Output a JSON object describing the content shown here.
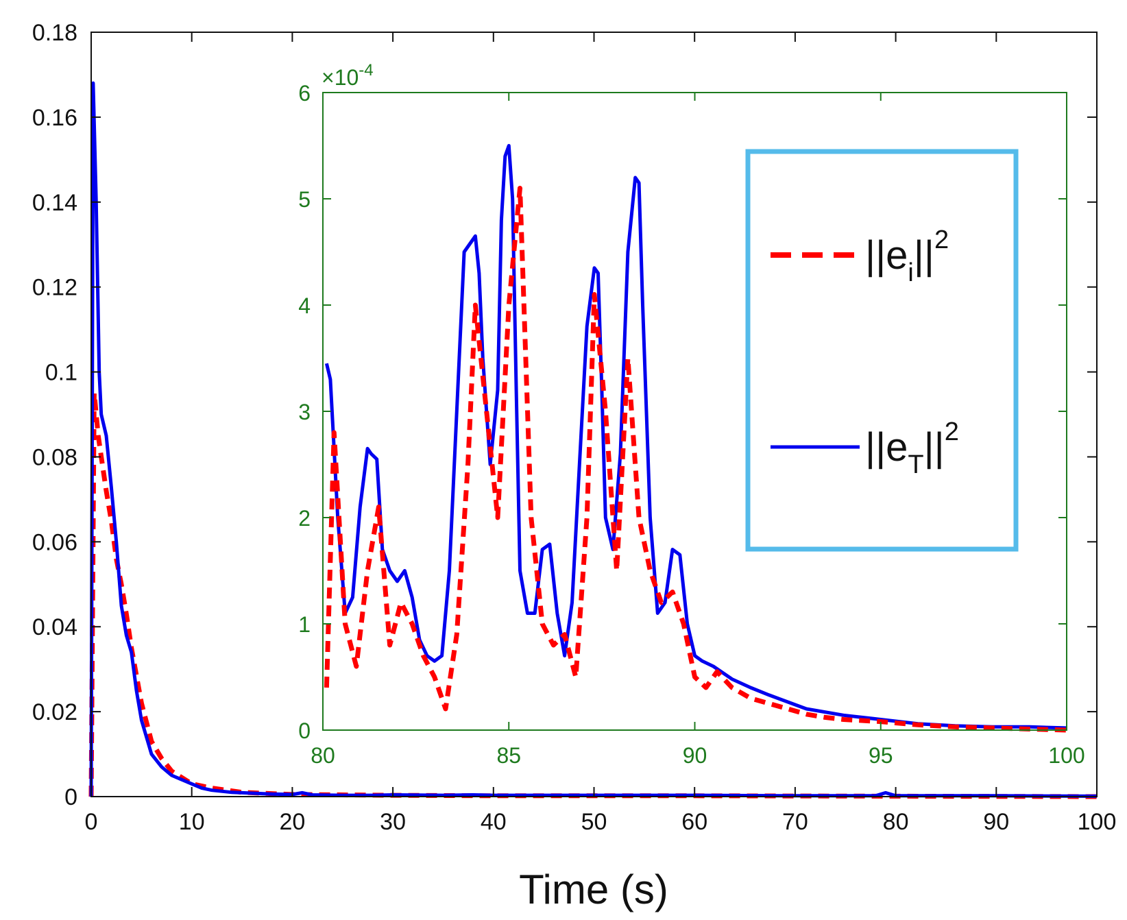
{
  "chart_data": [
    {
      "type": "line",
      "role": "main",
      "xlabel": "Time (s)",
      "ylabel": "",
      "xlim": [
        0,
        100
      ],
      "ylim": [
        0,
        0.18
      ],
      "xticks": [
        "0",
        "10",
        "20",
        "30",
        "40",
        "50",
        "60",
        "70",
        "80",
        "90",
        "100"
      ],
      "yticks": [
        "0",
        "0.02",
        "0.04",
        "0.06",
        "0.08",
        "0.1",
        "0.12",
        "0.14",
        "0.16",
        "0.18"
      ],
      "series": [
        {
          "name": "||e_i||^2",
          "style": "dashed",
          "color": "#ff0000",
          "x": [
            0,
            0.3,
            0.7,
            1.0,
            1.5,
            2.0,
            2.5,
            3.0,
            3.5,
            4.0,
            5.0,
            6.0,
            7.0,
            8.0,
            10.0,
            12.0,
            15.0,
            20.0,
            30.0,
            40.0,
            60.0,
            80.0,
            100.0
          ],
          "y": [
            0,
            0.095,
            0.085,
            0.08,
            0.072,
            0.065,
            0.056,
            0.05,
            0.043,
            0.035,
            0.022,
            0.013,
            0.009,
            0.006,
            0.003,
            0.002,
            0.001,
            0.0005,
            0.0003,
            0.0002,
            0.0002,
            0.0001,
            0.0
          ]
        },
        {
          "name": "||e_T||^2",
          "style": "solid",
          "color": "#0000ee",
          "x": [
            0,
            0.2,
            0.5,
            0.8,
            1.0,
            1.5,
            2.0,
            2.5,
            3.0,
            3.5,
            4.0,
            4.5,
            5.0,
            5.5,
            6.0,
            7.0,
            8.0,
            9.0,
            10.0,
            11.0,
            12.0,
            14.0,
            16.0,
            18.0,
            20.0,
            21.0,
            22.0,
            25.0,
            28.0,
            30.0,
            35.0,
            38.0,
            40.0,
            45.0,
            50.0,
            55.0,
            60.0,
            70.0,
            78.0,
            79.0,
            80.0,
            85.0,
            90.0,
            100.0
          ],
          "y": [
            0,
            0.168,
            0.14,
            0.1,
            0.09,
            0.085,
            0.073,
            0.06,
            0.045,
            0.038,
            0.034,
            0.025,
            0.018,
            0.014,
            0.01,
            0.007,
            0.005,
            0.004,
            0.003,
            0.002,
            0.0015,
            0.001,
            0.0008,
            0.0006,
            0.0005,
            0.0009,
            0.0004,
            0.0003,
            0.0003,
            0.0004,
            0.0003,
            0.0004,
            0.0003,
            0.0003,
            0.0003,
            0.0003,
            0.0003,
            0.0002,
            0.0002,
            0.0009,
            0.0002,
            0.0002,
            0.0002,
            0.0001
          ]
        }
      ]
    },
    {
      "type": "line",
      "role": "inset",
      "xlim": [
        80,
        100
      ],
      "ylim": [
        0,
        6
      ],
      "y_multiplier": "×10",
      "y_multiplier_exponent": "-4",
      "xticks": [
        "80",
        "85",
        "90",
        "95",
        "100"
      ],
      "yticks": [
        "0",
        "1",
        "2",
        "3",
        "4",
        "5",
        "6"
      ],
      "series": [
        {
          "name": "||e_T||^2",
          "style": "solid",
          "color": "#0000ee",
          "x": [
            80.1,
            80.2,
            80.4,
            80.6,
            80.8,
            81.0,
            81.2,
            81.3,
            81.45,
            81.6,
            81.8,
            82.0,
            82.1,
            82.2,
            82.4,
            82.6,
            82.8,
            83.0,
            83.2,
            83.4,
            83.6,
            83.8,
            84.0,
            84.1,
            84.2,
            84.3,
            84.5,
            84.7,
            84.8,
            84.9,
            85.0,
            85.1,
            85.2,
            85.3,
            85.5,
            85.7,
            85.9,
            86.1,
            86.3,
            86.5,
            86.7,
            86.9,
            87.1,
            87.3,
            87.4,
            87.5,
            87.6,
            87.8,
            88.0,
            88.2,
            88.4,
            88.5,
            88.6,
            88.8,
            89.0,
            89.2,
            89.4,
            89.6,
            89.8,
            90.0,
            90.2,
            90.5,
            91.0,
            91.5,
            92.0,
            93.0,
            94.0,
            95.0,
            96.0,
            97.0,
            98.0,
            99.0,
            100.0
          ],
          "y": [
            3.45,
            3.3,
            2.0,
            1.1,
            1.25,
            2.1,
            2.65,
            2.6,
            2.55,
            1.7,
            1.5,
            1.4,
            1.45,
            1.5,
            1.25,
            0.85,
            0.7,
            0.65,
            0.7,
            1.5,
            3.0,
            4.5,
            4.6,
            4.65,
            4.3,
            3.5,
            2.5,
            3.2,
            4.8,
            5.4,
            5.5,
            5.0,
            3.2,
            1.5,
            1.1,
            1.1,
            1.7,
            1.75,
            1.1,
            0.7,
            1.2,
            2.5,
            3.8,
            4.35,
            4.3,
            3.2,
            2.0,
            1.7,
            2.6,
            4.5,
            5.2,
            5.15,
            4.0,
            2.0,
            1.1,
            1.2,
            1.7,
            1.65,
            1.0,
            0.7,
            0.65,
            0.6,
            0.48,
            0.4,
            0.33,
            0.2,
            0.14,
            0.1,
            0.06,
            0.04,
            0.03,
            0.03,
            0.02
          ]
        },
        {
          "name": "||e_i||^2",
          "style": "dashed",
          "color": "#ff0000",
          "x": [
            80.1,
            80.3,
            80.6,
            80.9,
            81.2,
            81.5,
            81.8,
            82.1,
            82.4,
            82.7,
            83.0,
            83.3,
            83.6,
            83.9,
            84.1,
            84.4,
            84.7,
            85.0,
            85.3,
            85.6,
            85.9,
            86.2,
            86.5,
            86.8,
            87.1,
            87.3,
            87.6,
            87.9,
            88.2,
            88.5,
            88.8,
            89.1,
            89.4,
            89.7,
            90.0,
            90.3,
            90.6,
            91.0,
            91.5,
            92.0,
            92.5,
            93.0,
            93.5,
            94.0,
            95.0,
            96.0,
            97.0,
            98.0,
            99.0,
            100.0
          ],
          "y": [
            0.4,
            2.8,
            1.0,
            0.6,
            1.5,
            2.1,
            0.8,
            1.2,
            1.0,
            0.7,
            0.5,
            0.2,
            0.9,
            2.5,
            4.0,
            3.0,
            2.0,
            4.0,
            5.1,
            2.0,
            1.0,
            0.8,
            0.9,
            0.5,
            2.0,
            4.1,
            3.0,
            1.5,
            3.5,
            2.0,
            1.5,
            1.2,
            1.3,
            1.0,
            0.5,
            0.4,
            0.55,
            0.4,
            0.3,
            0.25,
            0.2,
            0.15,
            0.12,
            0.1,
            0.08,
            0.05,
            0.03,
            0.02,
            0.01,
            0.0
          ]
        }
      ]
    }
  ],
  "legend": {
    "entries": [
      {
        "base": "||e",
        "sub": "i",
        "close": "||",
        "sup": "2"
      },
      {
        "base": "||e",
        "sub": "T",
        "close": "||",
        "sup": "2"
      }
    ]
  }
}
